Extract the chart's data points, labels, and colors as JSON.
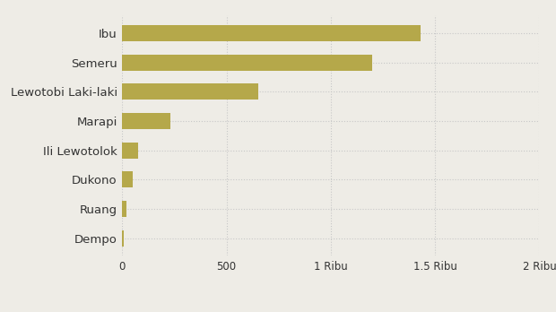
{
  "categories": [
    "Dempo",
    "Ruang",
    "Dukono",
    "Ili Lewotolok",
    "Marapi",
    "Lewotobi Laki-laki",
    "Semeru",
    "Ibu"
  ],
  "values": [
    8,
    18,
    50,
    75,
    230,
    650,
    1200,
    1430
  ],
  "bar_color": "#b5a84a",
  "background_color": "#eeece6",
  "plot_bg_color": "#eeece6",
  "xlim": [
    0,
    2000
  ],
  "xticks": [
    0,
    500,
    1000,
    1500,
    2000
  ],
  "xtick_labels": [
    "0",
    "500",
    "1 Ribu",
    "1.5 Ribu",
    "2 Ribu"
  ],
  "grid_color": "#c8c8c8",
  "label_fontsize": 9.5,
  "tick_fontsize": 8.5,
  "bar_height": 0.55
}
